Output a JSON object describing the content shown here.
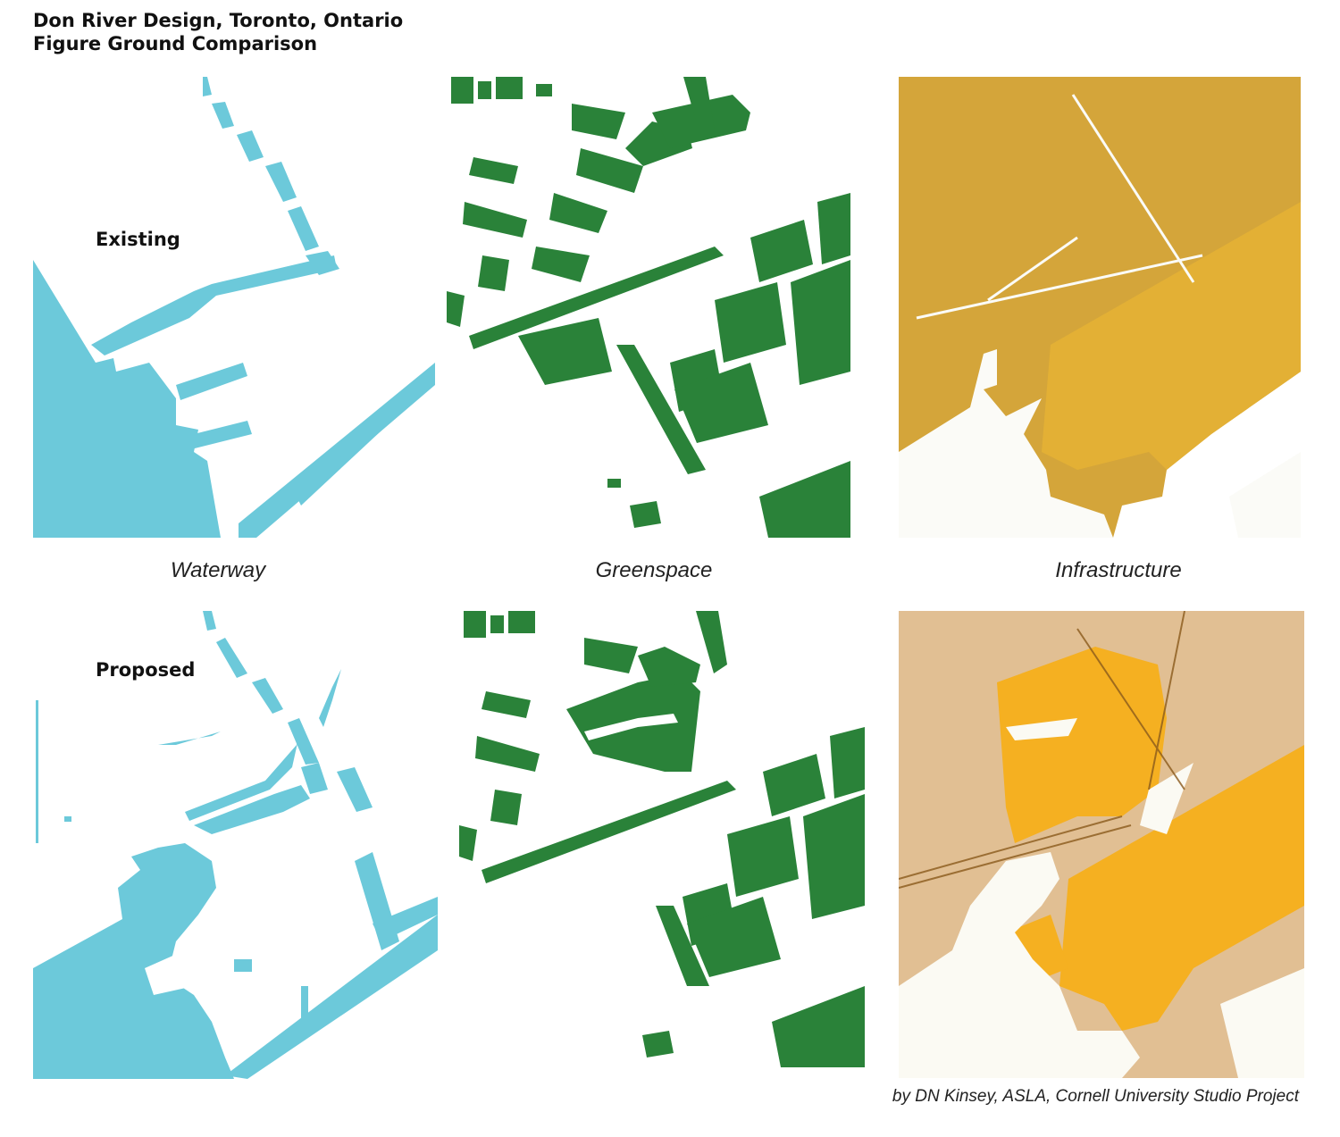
{
  "title": {
    "line1": "Don River Design, Toronto, Ontario",
    "line2": "Figure Ground Comparison"
  },
  "rows": {
    "existing": "Existing",
    "proposed": "Proposed"
  },
  "captions": {
    "waterway": "Waterway",
    "greenspace": "Greenspace",
    "infrastructure": "Infrastructure"
  },
  "credit": "by DN Kinsey, ASLA, Cornell University Studio Project",
  "colors": {
    "waterway": "#6cc9da",
    "greenspace": "#2a8239",
    "infrastructure_existing": "#d4a53a",
    "infrastructure_proposed": "#f5b021",
    "background": "#ffffff"
  }
}
